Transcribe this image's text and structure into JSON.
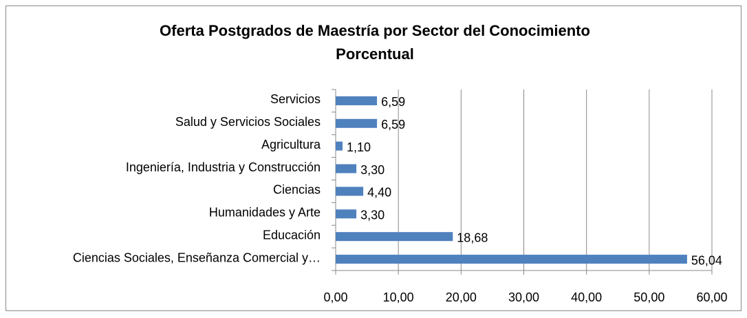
{
  "chart_data": {
    "type": "bar",
    "orientation": "horizontal",
    "title": "Oferta Postgrados de Maestría por Sector del Conocimiento",
    "subtitle": "Porcentual",
    "categories": [
      "Ciencias Sociales, Enseñanza Comercial y…",
      "Educación",
      "Humanidades y Arte",
      "Ciencias",
      "Ingeniería, Industria y Construcción",
      "Agricultura",
      "Salud y Servicios Sociales",
      "Servicios"
    ],
    "values": [
      56.04,
      18.68,
      3.3,
      4.4,
      3.3,
      1.1,
      6.59,
      6.59
    ],
    "value_labels": [
      "56,04",
      "18,68",
      "3,30",
      "4,40",
      "3,30",
      "1,10",
      "6,59",
      "6,59"
    ],
    "color": "#4f81bd",
    "xlim": [
      0,
      60
    ],
    "xticks": [
      {
        "value": 0,
        "label": "0,00"
      },
      {
        "value": 10,
        "label": "10,00"
      },
      {
        "value": 20,
        "label": "20,00"
      },
      {
        "value": 30,
        "label": "30,00"
      },
      {
        "value": 40,
        "label": "40,00"
      },
      {
        "value": 50,
        "label": "50,00"
      },
      {
        "value": 60,
        "label": "60,00"
      }
    ],
    "grid": true
  }
}
